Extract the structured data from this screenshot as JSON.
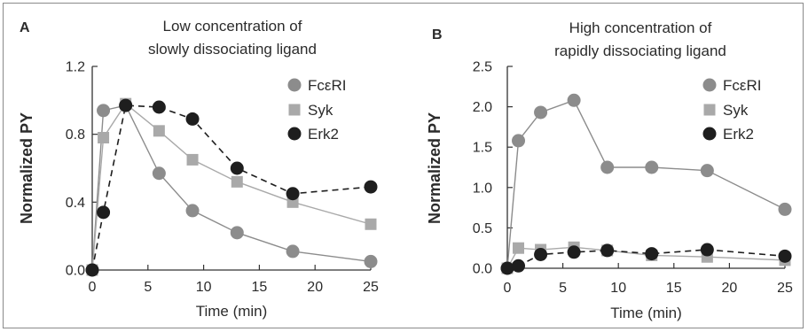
{
  "chart_data": [
    {
      "type": "line",
      "panel_letter": "A",
      "title": [
        "Low concentration of",
        "slowly dissociating  ligand"
      ],
      "xlabel": "Time (min)",
      "ylabel": "Normalized PY",
      "xlim": [
        0,
        25
      ],
      "ylim": [
        0,
        1.2
      ],
      "xticks": [
        0,
        5,
        10,
        15,
        20,
        25
      ],
      "xtick_labels": [
        "0",
        "5",
        "10",
        "15",
        "20",
        "25"
      ],
      "yticks": [
        0,
        0.4,
        0.8,
        1.2
      ],
      "ytick_labels": [
        "0.0",
        "0.4",
        "0.8",
        "1.2"
      ],
      "legend_position": "top-right",
      "grid": false,
      "series": [
        {
          "name": "FcεRI",
          "marker": "circle",
          "color": "#8c8c8c",
          "line": "solid",
          "x": [
            0,
            1,
            3,
            6,
            9,
            13,
            18,
            25
          ],
          "y": [
            0,
            0.94,
            0.97,
            0.57,
            0.35,
            0.22,
            0.11,
            0.05
          ]
        },
        {
          "name": "Syk",
          "marker": "square",
          "color": "#a9a9a9",
          "line": "solid",
          "x": [
            0,
            1,
            3,
            6,
            9,
            13,
            18,
            25
          ],
          "y": [
            0,
            0.78,
            0.98,
            0.82,
            0.65,
            0.52,
            0.4,
            0.27
          ]
        },
        {
          "name": "Erk2",
          "marker": "circle",
          "color": "#1e1e1e",
          "line": "dashed",
          "x": [
            0,
            1,
            3,
            6,
            9,
            13,
            18,
            25
          ],
          "y": [
            0,
            0.34,
            0.97,
            0.96,
            0.89,
            0.6,
            0.45,
            0.49
          ]
        }
      ]
    },
    {
      "type": "line",
      "panel_letter": "B",
      "title": [
        "High concentration of",
        "rapidly dissociating ligand"
      ],
      "xlabel": "Time (min)",
      "ylabel": "Normalized PY",
      "xlim": [
        0,
        25
      ],
      "ylim": [
        0,
        2.5
      ],
      "xticks": [
        0,
        5,
        10,
        15,
        20,
        25
      ],
      "xtick_labels": [
        "0",
        "5",
        "10",
        "15",
        "20",
        "25"
      ],
      "yticks": [
        0,
        0.5,
        1,
        1.5,
        2,
        2.5
      ],
      "ytick_labels": [
        "0.0",
        "0.5",
        "1.0",
        "1.5",
        "2.0",
        "2.5"
      ],
      "legend_position": "top-right",
      "grid": false,
      "series": [
        {
          "name": "FcεRI",
          "marker": "circle",
          "color": "#8c8c8c",
          "line": "solid",
          "x": [
            0,
            1,
            3,
            6,
            9,
            13,
            18,
            25
          ],
          "y": [
            0,
            1.58,
            1.93,
            2.08,
            1.25,
            1.25,
            1.21,
            0.73
          ]
        },
        {
          "name": "Syk",
          "marker": "square",
          "color": "#a9a9a9",
          "line": "solid",
          "x": [
            0,
            1,
            3,
            6,
            9,
            13,
            18,
            25
          ],
          "y": [
            0,
            0.25,
            0.23,
            0.26,
            0.22,
            0.16,
            0.14,
            0.1
          ]
        },
        {
          "name": "Erk2",
          "marker": "circle",
          "color": "#1e1e1e",
          "line": "dashed",
          "x": [
            0,
            1,
            3,
            6,
            9,
            13,
            18,
            25
          ],
          "y": [
            0,
            0.03,
            0.17,
            0.2,
            0.22,
            0.18,
            0.23,
            0.15
          ]
        }
      ]
    }
  ]
}
